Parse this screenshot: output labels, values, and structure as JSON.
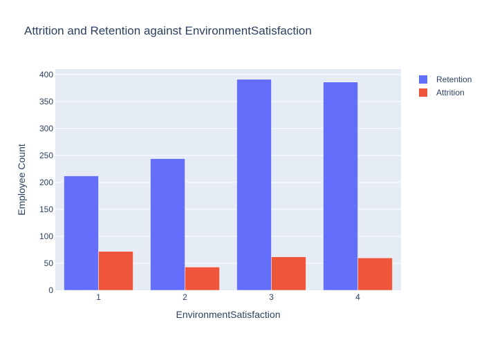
{
  "chart_data": {
    "type": "bar",
    "title": "Attrition and Retention against EnvironmentSatisfaction",
    "xlabel": "EnvironmentSatisfaction",
    "ylabel": "Employee Count",
    "categories": [
      "1",
      "2",
      "3",
      "4"
    ],
    "ylim": [
      0,
      410
    ],
    "yticks": [
      0,
      50,
      100,
      150,
      200,
      250,
      300,
      350,
      400
    ],
    "series": [
      {
        "name": "Retention",
        "color": "#636efa",
        "values": [
          212,
          244,
          391,
          386
        ]
      },
      {
        "name": "Attrition",
        "color": "#ef553b",
        "values": [
          72,
          43,
          62,
          60
        ]
      }
    ],
    "legend_position": "top-right",
    "plot_background": "#e5ecf6",
    "grid": true
  }
}
